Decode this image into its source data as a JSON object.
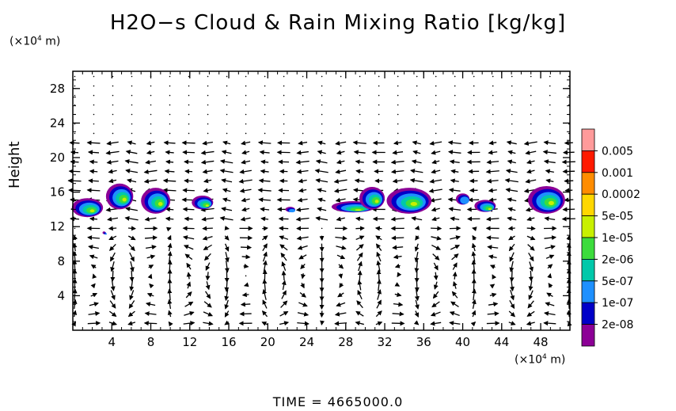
{
  "title": "H2O−s Cloud & Rain Mixing Ratio [kg/kg]",
  "y_unit": {
    "prefix": "(×10",
    "exp": "4",
    "suffix": " m)"
  },
  "x_unit": {
    "prefix": "(×10",
    "exp": "4",
    "suffix": " m)"
  },
  "time_label": "TIME = 4665000.0",
  "chart_data": {
    "type": "heatmap",
    "title": "H2O−s Cloud & Rain Mixing Ratio [kg/kg]",
    "xlabel": "",
    "ylabel": "Height",
    "xlim": [
      0,
      51
    ],
    "ylim": [
      0,
      30
    ],
    "xticks": [
      4,
      8,
      12,
      16,
      20,
      24,
      28,
      32,
      36,
      40,
      44,
      48
    ],
    "yticks": [
      4,
      8,
      12,
      16,
      20,
      24,
      28
    ],
    "colorbar": {
      "levels": [
        "0.005",
        "0.001",
        "0.0002",
        "5e-05",
        "1e-05",
        "2e-06",
        "5e-07",
        "1e-07",
        "2e-08"
      ],
      "colors": [
        "#ff9a9a",
        "#ff1a00",
        "#ff8c00",
        "#ffd700",
        "#c8f000",
        "#3cdc3c",
        "#00c8aa",
        "#1e90ff",
        "#0000c8",
        "#8c0096"
      ]
    },
    "clouds": [
      {
        "x": 1.5,
        "y": 14.2,
        "w": 3.2,
        "h": 2.2
      },
      {
        "x": 4.8,
        "y": 15.5,
        "w": 2.8,
        "h": 3.0
      },
      {
        "x": 8.5,
        "y": 15.0,
        "w": 3.0,
        "h": 3.0
      },
      {
        "x": 13.3,
        "y": 14.8,
        "w": 2.2,
        "h": 1.6
      },
      {
        "x": 22.3,
        "y": 14.0,
        "w": 1.0,
        "h": 0.6
      },
      {
        "x": 28.8,
        "y": 14.3,
        "w": 4.5,
        "h": 1.3
      },
      {
        "x": 30.7,
        "y": 15.3,
        "w": 2.6,
        "h": 2.6
      },
      {
        "x": 34.5,
        "y": 15.0,
        "w": 4.6,
        "h": 3.0
      },
      {
        "x": 40.0,
        "y": 15.2,
        "w": 1.4,
        "h": 1.3
      },
      {
        "x": 42.3,
        "y": 14.4,
        "w": 2.2,
        "h": 1.4
      },
      {
        "x": 48.6,
        "y": 15.1,
        "w": 3.8,
        "h": 3.2
      },
      {
        "x": 3.2,
        "y": 11.3,
        "w": 0.3,
        "h": 0.3
      }
    ],
    "vector_field": "wind arrows (u,w) on regular grid, circulation cells below z≈12"
  }
}
